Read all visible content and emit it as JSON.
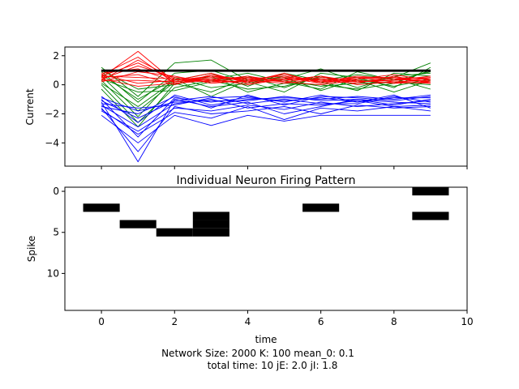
{
  "chart_data": [
    {
      "type": "line",
      "ylabel": "Current",
      "xlabel": "",
      "xlim": [
        -1,
        10
      ],
      "ylim": [
        -5.6,
        2.6
      ],
      "xticks": [
        0,
        2,
        4,
        6,
        8,
        10
      ],
      "yticks": [
        2,
        0,
        -2,
        -4
      ],
      "ytick_labels": [
        "2",
        "0",
        "−2",
        "−4"
      ],
      "x": [
        0,
        1,
        2,
        3,
        4,
        5,
        6,
        7,
        8,
        9
      ],
      "colors": {
        "excitatory": "#ff0000",
        "inhibitory": "#0000ff",
        "external": "#008000",
        "mean": "#000000"
      },
      "groups": {
        "excitatory": [
          [
            0.5,
            2.3,
            0.2,
            0.6,
            0.3,
            0.7,
            0.2,
            0.4,
            0.5,
            0.2
          ],
          [
            0.7,
            1.9,
            0.1,
            0.4,
            0.5,
            0.3,
            0.6,
            0.2,
            0.3,
            0.4
          ],
          [
            0.3,
            1.7,
            0.4,
            0.2,
            0.2,
            0.5,
            0.1,
            0.5,
            0.2,
            0.3
          ],
          [
            0.6,
            1.5,
            0.3,
            0.8,
            0.1,
            0.4,
            0.3,
            0.1,
            0.6,
            0.1
          ],
          [
            0.4,
            1.3,
            0.5,
            0.3,
            0.6,
            0.2,
            0.5,
            0.3,
            0.1,
            0.5
          ],
          [
            0.8,
            1.1,
            0.2,
            0.5,
            0.4,
            0.6,
            0.2,
            0.6,
            0.4,
            0.2
          ],
          [
            0.2,
            0.9,
            0.6,
            0.1,
            0.3,
            0.1,
            0.4,
            0.2,
            0.3,
            0.6
          ],
          [
            0.5,
            0.7,
            0.0,
            0.7,
            0.2,
            0.8,
            0.1,
            0.4,
            0.7,
            0.3
          ],
          [
            0.6,
            0.5,
            0.4,
            0.2,
            0.5,
            0.3,
            0.6,
            0.0,
            0.2,
            0.1
          ],
          [
            0.3,
            0.3,
            0.2,
            0.4,
            0.0,
            0.4,
            0.3,
            0.5,
            0.5,
            0.4
          ],
          [
            0.7,
            0.1,
            0.3,
            0.6,
            0.4,
            0.2,
            0.0,
            0.3,
            0.1,
            0.2
          ],
          [
            0.4,
            -0.1,
            0.1,
            0.3,
            0.2,
            0.5,
            0.4,
            0.2,
            0.4,
            0.5
          ]
        ],
        "inhibitory": [
          [
            -1.2,
            -5.3,
            -1.0,
            -1.5,
            -1.2,
            -2.0,
            -1.5,
            -1.0,
            -1.2,
            -1.3
          ],
          [
            -1.6,
            -4.6,
            -1.5,
            -2.0,
            -1.8,
            -1.5,
            -2.0,
            -1.4,
            -1.6,
            -1.5
          ],
          [
            -2.1,
            -4.0,
            -2.1,
            -2.8,
            -2.1,
            -2.5,
            -2.1,
            -2.1,
            -2.1,
            -2.1
          ],
          [
            -1.0,
            -3.6,
            -0.9,
            -1.2,
            -0.9,
            -1.1,
            -0.9,
            -1.2,
            -0.9,
            -0.9
          ],
          [
            -1.8,
            -3.2,
            -1.6,
            -1.8,
            -1.4,
            -1.7,
            -1.2,
            -1.5,
            -1.3,
            -1.1
          ],
          [
            -1.4,
            -2.9,
            -1.3,
            -1.0,
            -1.6,
            -1.3,
            -1.4,
            -1.1,
            -1.5,
            -1.4
          ],
          [
            -0.8,
            -2.6,
            -0.7,
            -1.4,
            -1.0,
            -0.9,
            -1.0,
            -0.8,
            -1.0,
            -0.7
          ],
          [
            -1.1,
            -2.3,
            -1.1,
            -0.8,
            -1.3,
            -1.0,
            -1.3,
            -1.3,
            -0.8,
            -1.2
          ],
          [
            -1.5,
            -2.0,
            -0.8,
            -1.6,
            -0.7,
            -1.4,
            -0.8,
            -0.9,
            -1.1,
            -0.8
          ],
          [
            -0.9,
            -1.8,
            -1.2,
            -1.1,
            -1.1,
            -0.8,
            -1.1,
            -1.0,
            -1.4,
            -1.0
          ],
          [
            -1.3,
            -1.6,
            -1.4,
            -0.9,
            -0.8,
            -1.2,
            -0.7,
            -1.2,
            -0.7,
            -1.6
          ],
          [
            -1.7,
            -3.4,
            -1.9,
            -2.3,
            -1.5,
            -2.4,
            -1.6,
            -1.8,
            -1.5,
            -1.8
          ]
        ],
        "external": [
          [
            1.2,
            -0.8,
            1.5,
            1.7,
            0.3,
            0.4,
            1.1,
            0.2,
            0.5,
            1.5
          ],
          [
            0.9,
            -1.2,
            0.8,
            1.0,
            0.2,
            -0.5,
            0.8,
            0.5,
            -0.2,
            1.2
          ],
          [
            0.6,
            -1.8,
            0.2,
            0.4,
            0.8,
            0.2,
            -0.3,
            0.9,
            0.3,
            0.9
          ],
          [
            0.3,
            -2.2,
            0.5,
            -0.2,
            0.1,
            0.6,
            0.2,
            -0.4,
            0.8,
            0.6
          ],
          [
            0.0,
            -2.6,
            -0.2,
            0.3,
            -0.3,
            -0.1,
            0.5,
            0.3,
            -0.5,
            0.3
          ],
          [
            -0.3,
            -2.9,
            0.1,
            -0.5,
            0.5,
            0.3,
            -0.1,
            0.1,
            0.2,
            0.0
          ],
          [
            0.1,
            -1.5,
            0.3,
            0.8,
            -0.1,
            0.8,
            0.3,
            0.7,
            0.4,
            -0.3
          ],
          [
            0.4,
            -0.5,
            -0.4,
            0.2,
            0.6,
            -0.2,
            0.6,
            -0.2,
            0.6,
            0.8
          ],
          [
            0.7,
            -1.0,
            0.4,
            -0.8,
            0.3,
            0.5,
            -0.4,
            0.4,
            -0.1,
            0.4
          ],
          [
            1.0,
            -0.3,
            0.0,
            0.6,
            -0.5,
            0.1,
            0.0,
            -0.3,
            0.1,
            1.0
          ]
        ],
        "mean": [
          [
            1.0,
            1.0,
            1.0,
            1.0,
            1.0,
            1.0,
            1.0,
            1.0,
            1.0,
            1.0
          ],
          [
            0.95,
            0.95,
            0.95,
            0.95,
            0.95,
            0.95,
            0.95,
            0.95,
            0.95,
            0.95
          ]
        ]
      }
    },
    {
      "type": "heatmap",
      "title": "Individual Neuron Firing Pattern",
      "xlabel": "time",
      "ylabel": "Spike",
      "xlim": [
        -1,
        10
      ],
      "ylim": [
        14.5,
        -0.5
      ],
      "y_inverted": true,
      "xticks": [
        0,
        2,
        4,
        6,
        8,
        10
      ],
      "yticks": [
        0,
        5,
        10
      ],
      "spikes": [
        {
          "t": 0,
          "neuron": 2
        },
        {
          "t": 1,
          "neuron": 4
        },
        {
          "t": 2,
          "neuron": 5
        },
        {
          "t": 3,
          "neuron": 3
        },
        {
          "t": 3,
          "neuron": 4
        },
        {
          "t": 3,
          "neuron": 5
        },
        {
          "t": 6,
          "neuron": 2
        },
        {
          "t": 9,
          "neuron": 0
        },
        {
          "t": 9,
          "neuron": 3
        }
      ]
    }
  ],
  "footer": {
    "line1": "Network Size: 2000  K: 100  mean_0: 0.1",
    "line2": "total time: 10   jE: 2.0   jI: 1.8"
  }
}
